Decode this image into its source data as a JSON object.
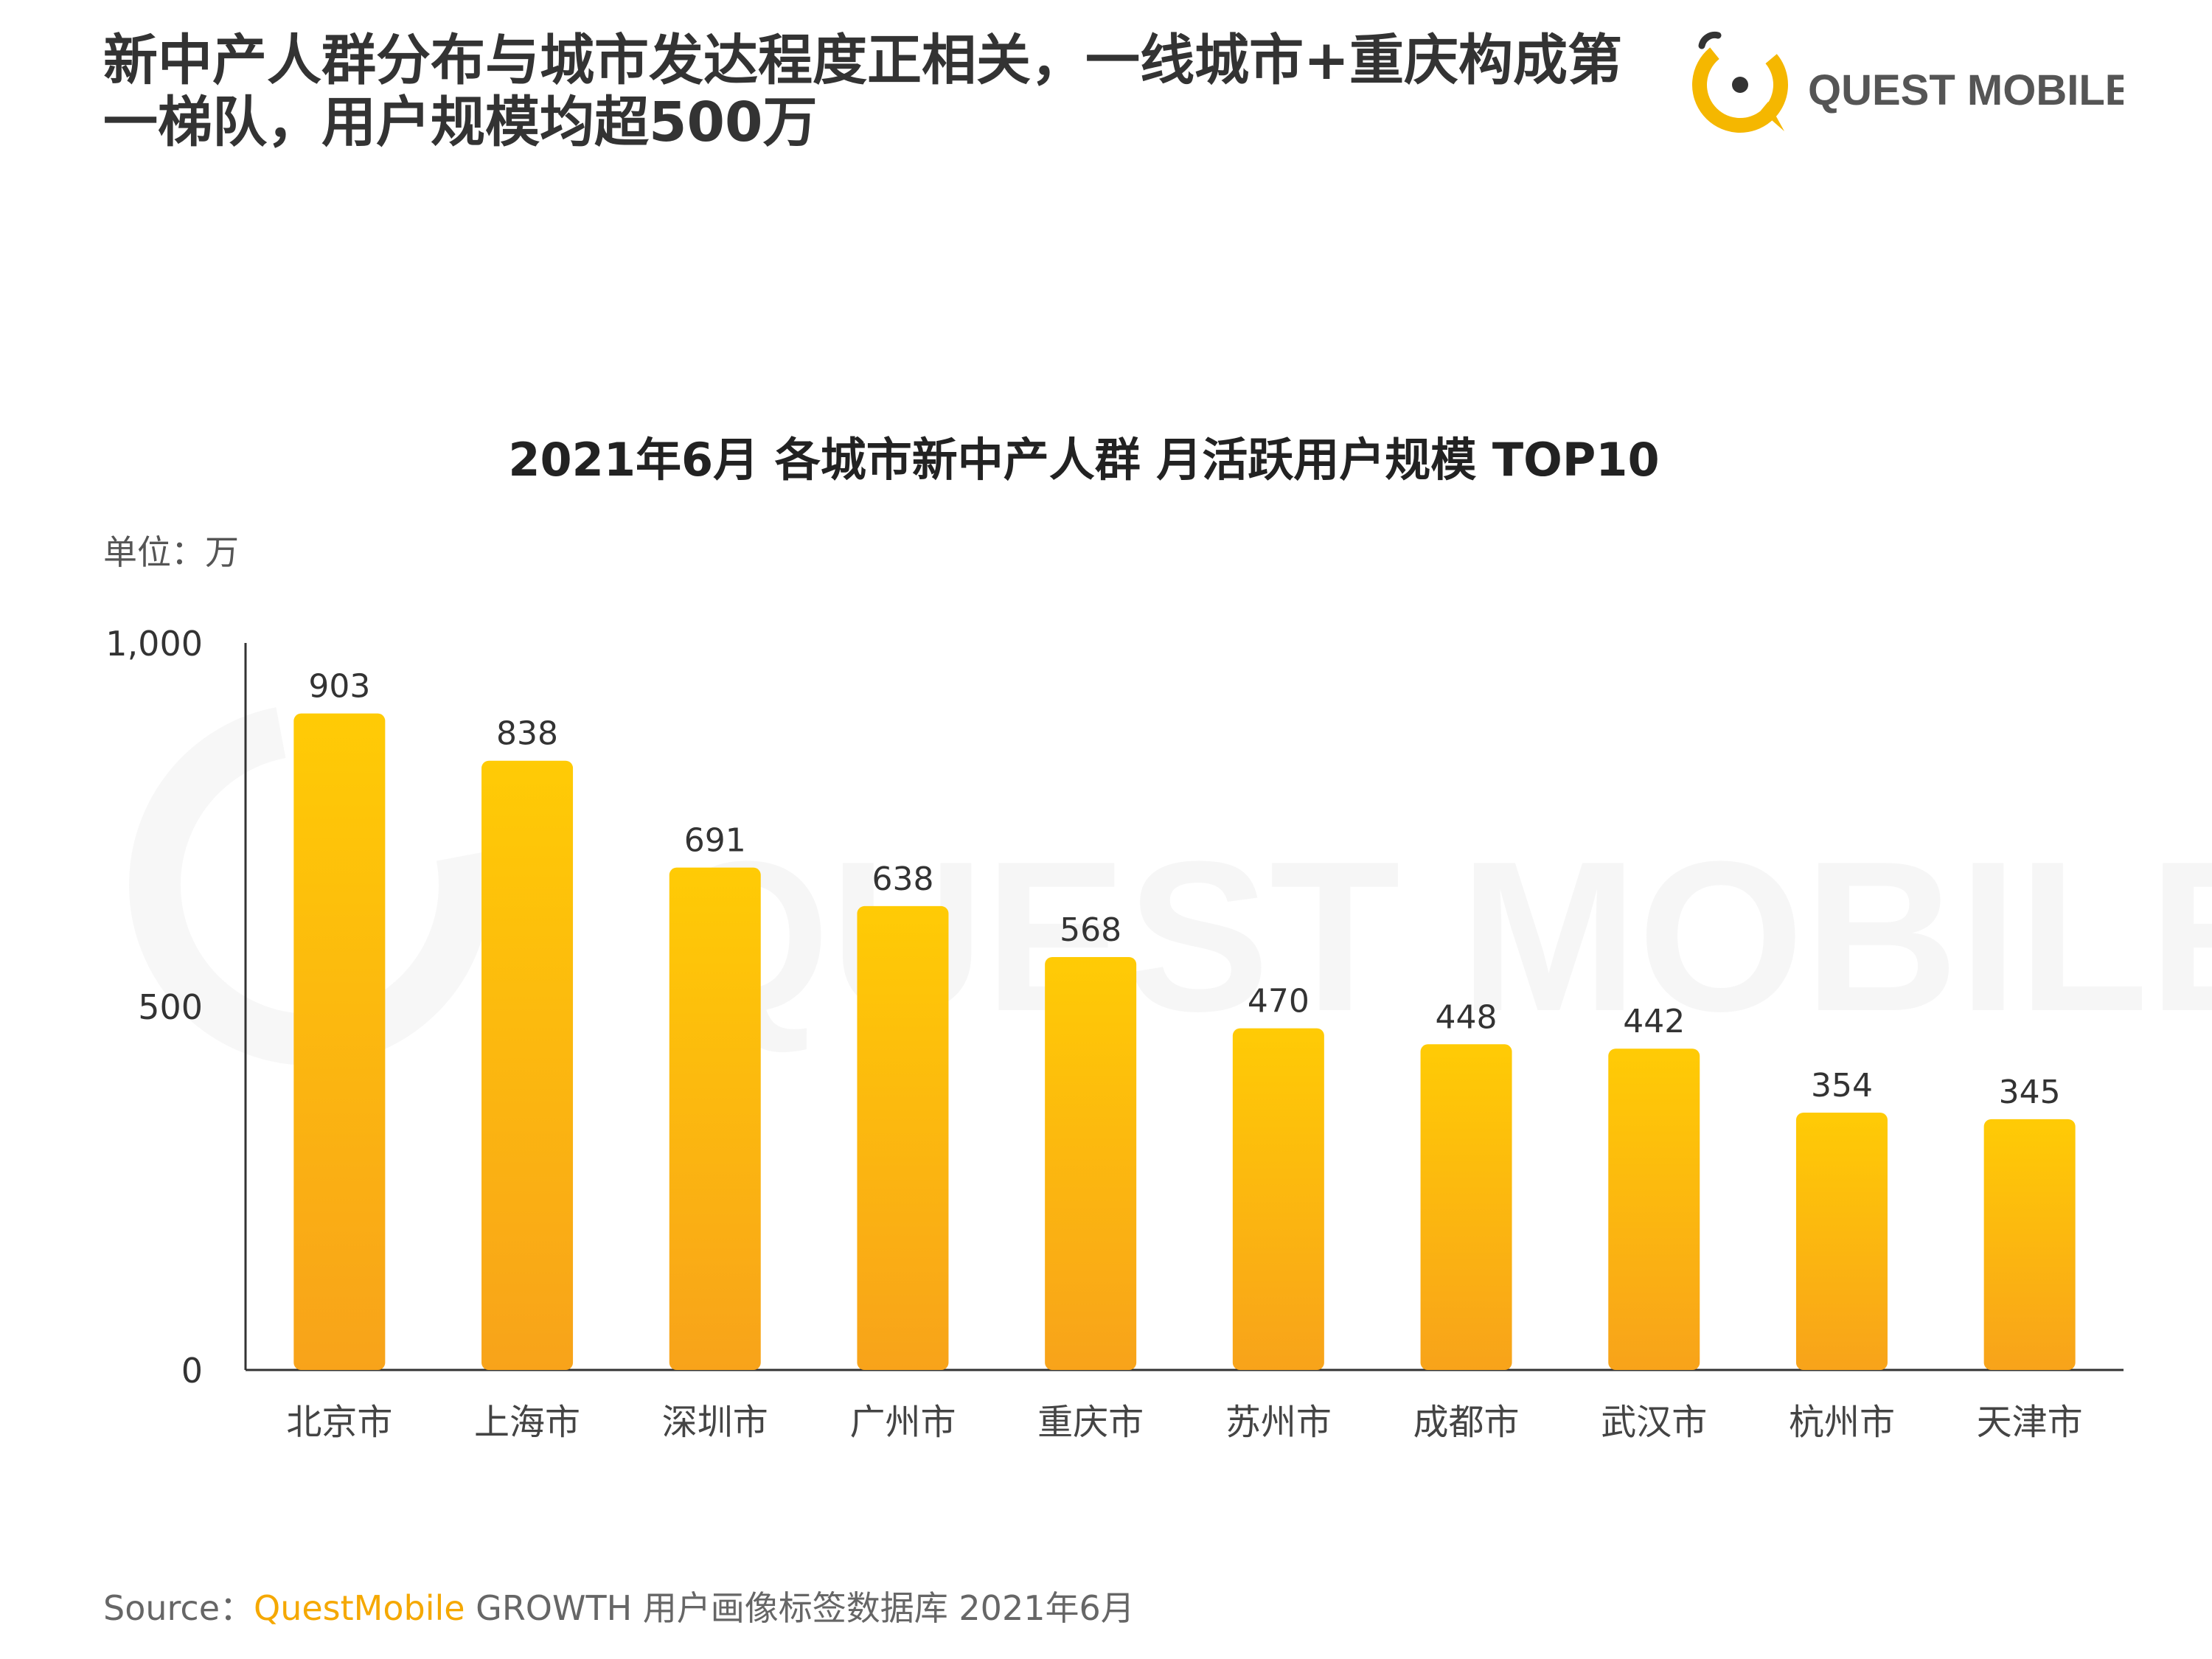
{
  "header": {
    "headline": "新中产人群分布与城市发达程度正相关，一线城市+重庆构成第一梯队，用户规模均超500万"
  },
  "logo": {
    "text": "QUEST MOBILE",
    "icon": "quest-mobile-logo-icon",
    "accent": "#f5b700"
  },
  "watermark": {
    "text": "QUEST MOBILE"
  },
  "source": {
    "prefix": "Source：",
    "brand": "QuestMobile",
    "rest": " GROWTH 用户画像标签数据库 2021年6月"
  },
  "colors": {
    "bar_top": "#ffcb05",
    "bar_bottom": "#f8a31a",
    "axis": "#333333"
  },
  "chart_data": {
    "type": "bar",
    "title": "2021年6月 各城市新中产人群 月活跃用户规模 TOP10",
    "unit_label": "单位：万",
    "categories": [
      "北京市",
      "上海市",
      "深圳市",
      "广州市",
      "重庆市",
      "苏州市",
      "成都市",
      "武汉市",
      "杭州市",
      "天津市"
    ],
    "values": [
      903,
      838,
      691,
      638,
      568,
      470,
      448,
      442,
      354,
      345
    ],
    "ylim": [
      0,
      1000
    ],
    "yticks": [
      0,
      500,
      1000
    ],
    "ytick_labels": [
      "0",
      "500",
      "1,000"
    ],
    "grid": false,
    "data_labels": true
  }
}
